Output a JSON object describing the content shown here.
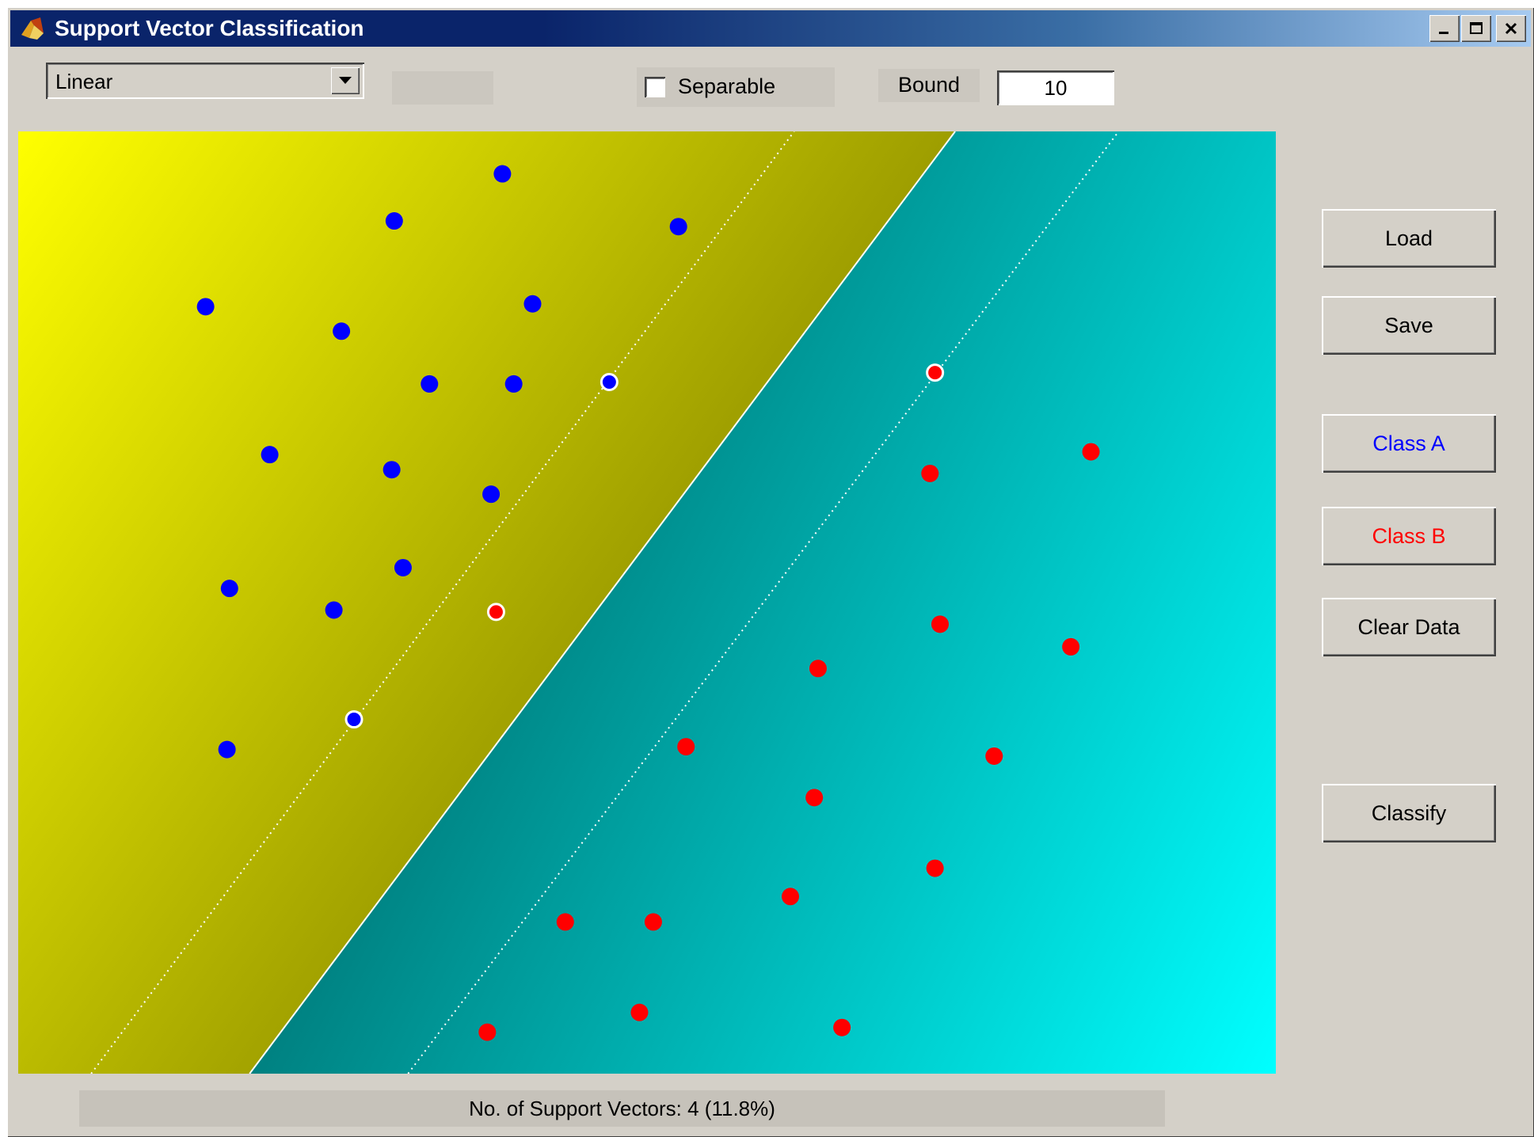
{
  "window": {
    "title": "Support Vector Classification"
  },
  "controls": {
    "kernel_select": {
      "value": "Linear"
    },
    "separable": {
      "label": "Separable",
      "checked": false
    },
    "bound": {
      "label": "Bound",
      "value": "10"
    }
  },
  "buttons": {
    "load": "Load",
    "save": "Save",
    "class_a": "Class A",
    "class_b": "Class B",
    "clear_data": "Clear Data",
    "classify": "Classify"
  },
  "colors": {
    "class_a": "#0000ff",
    "class_b": "#ff0000",
    "region_a": "#ffff00",
    "region_b": "#00ffff",
    "title_bar": "#0a246a"
  },
  "status": {
    "text": "No. of Support Vectors: 4 (11.8%)"
  },
  "icons": [
    "matlab-logo-icon",
    "minimize-icon",
    "maximize-icon",
    "close-icon",
    "dropdown-arrow-icon"
  ],
  "chart_data": {
    "type": "scatter",
    "title": "",
    "xlabel": "",
    "ylabel": "",
    "grid": false,
    "xlim": [
      0,
      1
    ],
    "ylim": [
      0,
      1
    ],
    "series": [
      {
        "name": "Class A",
        "color": "#0000ff",
        "points": [
          [
            0.385,
            0.955
          ],
          [
            0.299,
            0.905
          ],
          [
            0.525,
            0.899
          ],
          [
            0.149,
            0.814
          ],
          [
            0.257,
            0.788
          ],
          [
            0.409,
            0.817
          ],
          [
            0.327,
            0.732
          ],
          [
            0.394,
            0.732
          ],
          [
            0.2,
            0.657
          ],
          [
            0.297,
            0.641
          ],
          [
            0.376,
            0.615
          ],
          [
            0.306,
            0.537
          ],
          [
            0.168,
            0.515
          ],
          [
            0.251,
            0.492
          ],
          [
            0.166,
            0.344
          ]
        ]
      },
      {
        "name": "Class B",
        "color": "#ff0000",
        "points": [
          [
            0.725,
            0.637
          ],
          [
            0.853,
            0.66
          ],
          [
            0.733,
            0.477
          ],
          [
            0.837,
            0.453
          ],
          [
            0.636,
            0.43
          ],
          [
            0.531,
            0.347
          ],
          [
            0.776,
            0.337
          ],
          [
            0.633,
            0.293
          ],
          [
            0.729,
            0.218
          ],
          [
            0.614,
            0.188
          ],
          [
            0.435,
            0.161
          ],
          [
            0.505,
            0.161
          ],
          [
            0.494,
            0.065
          ],
          [
            0.373,
            0.044
          ],
          [
            0.655,
            0.049
          ]
        ]
      }
    ],
    "support_vectors": [
      {
        "class": "Class A",
        "point": [
          0.47,
          0.734
        ]
      },
      {
        "class": "Class A",
        "point": [
          0.267,
          0.376
        ]
      },
      {
        "class": "Class B",
        "point": [
          0.729,
          0.744
        ]
      },
      {
        "class": "Class B",
        "point": [
          0.38,
          0.49
        ]
      }
    ],
    "decision_boundary": {
      "p1": [
        0.184,
        0.0
      ],
      "p2": [
        0.745,
        1.0
      ]
    },
    "margin_lines": [
      {
        "p1": [
          0.058,
          0.0
        ],
        "p2": [
          0.617,
          1.0
        ]
      },
      {
        "p1": [
          0.31,
          0.0
        ],
        "p2": [
          0.875,
          1.0
        ]
      }
    ]
  }
}
